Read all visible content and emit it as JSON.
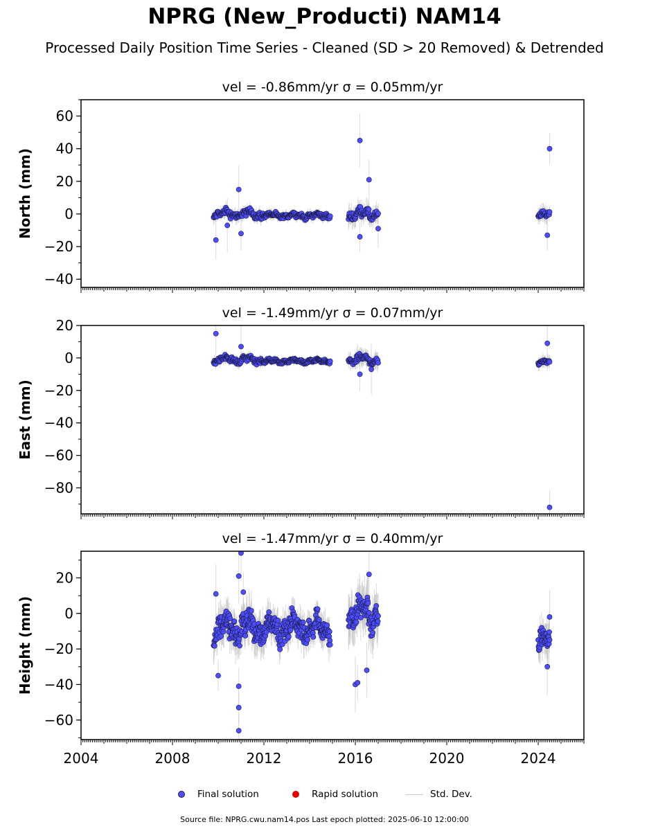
{
  "title": "NPRG (New_Producti) NAM14",
  "subtitle": "Processed Daily Position Time Series - Cleaned (SD > 20 Removed) & Detrended",
  "legend": {
    "final_label": "Final solution",
    "rapid_label": "Rapid solution",
    "std_label": "Std. Dev."
  },
  "footer": "Source file: NPRG.cwu.nam14.pos  Last epoch plotted: 2025-06-10 12:00:00",
  "colors": {
    "final": "#4d4dff",
    "rapid": "#e60000",
    "std": "#bbbbbb"
  },
  "chart_data": [
    {
      "type": "scatter",
      "title": "vel = -0.86mm/yr   σ = 0.05mm/yr",
      "ylabel": "North (mm)",
      "xlim": [
        2004,
        2026
      ],
      "ylim": [
        -45,
        70
      ],
      "yticks": [
        -40,
        -20,
        0,
        20,
        40,
        60
      ],
      "segments": [
        {
          "x": [
            2009.8,
            2012.0
          ],
          "center": 0,
          "amp": 2.5,
          "std": 3,
          "density": 0.6
        },
        {
          "x": [
            2012.0,
            2014.9
          ],
          "center": -1,
          "amp": 1.5,
          "std": 2.5,
          "density": 0.6
        },
        {
          "x": [
            2015.7,
            2017.0
          ],
          "center": 0,
          "amp": 3,
          "std": 5,
          "density": 0.6
        },
        {
          "x": [
            2024.0,
            2024.5
          ],
          "center": -1,
          "amp": 2,
          "std": 4,
          "density": 0.6
        }
      ],
      "outliers": [
        [
          2009.9,
          -16
        ],
        [
          2010.9,
          15
        ],
        [
          2011.0,
          -12
        ],
        [
          2016.2,
          45
        ],
        [
          2016.6,
          21
        ],
        [
          2016.2,
          -14
        ],
        [
          2024.5,
          40
        ],
        [
          2024.4,
          -13
        ],
        [
          2017.0,
          -9
        ],
        [
          2010.4,
          -7
        ]
      ]
    },
    {
      "type": "scatter",
      "title": "vel = -1.49mm/yr   σ = 0.07mm/yr",
      "ylabel": "East (mm)",
      "xlim": [
        2004,
        2026
      ],
      "ylim": [
        -96,
        20
      ],
      "yticks": [
        -80,
        -60,
        -40,
        -20,
        0,
        20
      ],
      "segments": [
        {
          "x": [
            2009.8,
            2012.0
          ],
          "center": -1,
          "amp": 2,
          "std": 2.5,
          "density": 0.6
        },
        {
          "x": [
            2012.0,
            2014.9
          ],
          "center": -2,
          "amp": 1.2,
          "std": 2,
          "density": 0.6
        },
        {
          "x": [
            2015.7,
            2017.0
          ],
          "center": -1,
          "amp": 2.5,
          "std": 4,
          "density": 0.6
        },
        {
          "x": [
            2024.0,
            2024.5
          ],
          "center": -3,
          "amp": 1.5,
          "std": 3,
          "density": 0.6
        }
      ],
      "outliers": [
        [
          2009.9,
          15
        ],
        [
          2011.0,
          7
        ],
        [
          2016.2,
          -10
        ],
        [
          2016.7,
          -7
        ],
        [
          2024.4,
          9
        ],
        [
          2024.5,
          -92
        ]
      ]
    },
    {
      "type": "scatter",
      "title": "vel = -1.47mm/yr   σ = 0.40mm/yr",
      "ylabel": "Height (mm)",
      "xlim": [
        2004,
        2026
      ],
      "ylim": [
        -71,
        35
      ],
      "yticks": [
        -60,
        -40,
        -20,
        0,
        20
      ],
      "xticks": [
        2004,
        2008,
        2012,
        2016,
        2020,
        2024
      ],
      "segments": [
        {
          "x": [
            2009.8,
            2012.0
          ],
          "center": -8,
          "amp": 8,
          "std": 8,
          "density": 0.8
        },
        {
          "x": [
            2012.0,
            2014.9
          ],
          "center": -8,
          "amp": 7,
          "std": 7,
          "density": 0.8
        },
        {
          "x": [
            2015.7,
            2017.0
          ],
          "center": 0,
          "amp": 9,
          "std": 10,
          "density": 0.8
        },
        {
          "x": [
            2024.0,
            2024.5
          ],
          "center": -17,
          "amp": 7,
          "std": 8,
          "density": 0.8
        }
      ],
      "outliers": [
        [
          2009.9,
          11
        ],
        [
          2010.0,
          -35
        ],
        [
          2010.9,
          -66
        ],
        [
          2010.9,
          -53
        ],
        [
          2010.9,
          -41
        ],
        [
          2010.9,
          21
        ],
        [
          2011.0,
          34
        ],
        [
          2011.1,
          12
        ],
        [
          2016.0,
          -40
        ],
        [
          2016.1,
          -39
        ],
        [
          2016.6,
          22
        ],
        [
          2016.5,
          -32
        ],
        [
          2024.5,
          -2
        ],
        [
          2024.4,
          -30
        ]
      ]
    }
  ]
}
